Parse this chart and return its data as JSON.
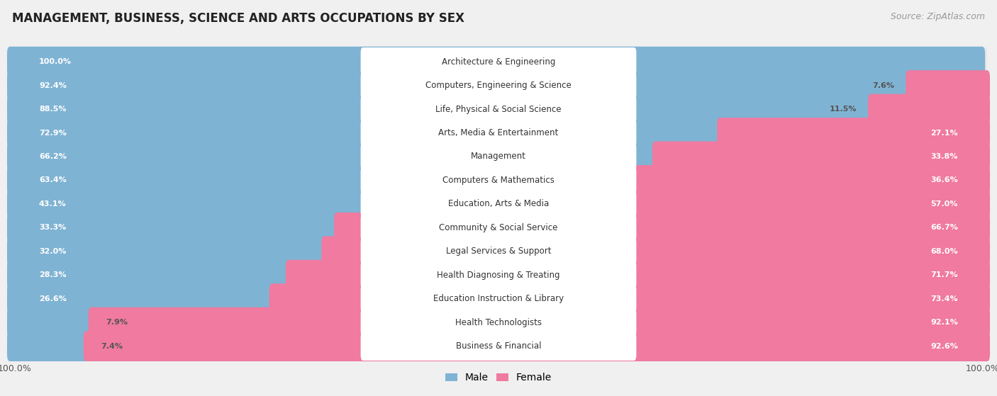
{
  "title": "MANAGEMENT, BUSINESS, SCIENCE AND ARTS OCCUPATIONS BY SEX",
  "source": "Source: ZipAtlas.com",
  "categories": [
    "Architecture & Engineering",
    "Computers, Engineering & Science",
    "Life, Physical & Social Science",
    "Arts, Media & Entertainment",
    "Management",
    "Computers & Mathematics",
    "Education, Arts & Media",
    "Community & Social Service",
    "Legal Services & Support",
    "Health Diagnosing & Treating",
    "Education Instruction & Library",
    "Health Technologists",
    "Business & Financial"
  ],
  "male_pct": [
    100.0,
    92.4,
    88.5,
    72.9,
    66.2,
    63.4,
    43.1,
    33.3,
    32.0,
    28.3,
    26.6,
    7.9,
    7.4
  ],
  "female_pct": [
    0.0,
    7.6,
    11.5,
    27.1,
    33.8,
    36.6,
    57.0,
    66.7,
    68.0,
    71.7,
    73.4,
    92.1,
    92.6
  ],
  "male_color": "#7fb3d3",
  "female_color": "#f07aa0",
  "row_bg_color": "#e8e8e8",
  "bar_bg_color": "#ffffff",
  "fig_bg_color": "#f0f0f0",
  "title_fontsize": 12,
  "label_fontsize": 8.5,
  "pct_fontsize": 8,
  "source_fontsize": 9,
  "legend_fontsize": 10
}
